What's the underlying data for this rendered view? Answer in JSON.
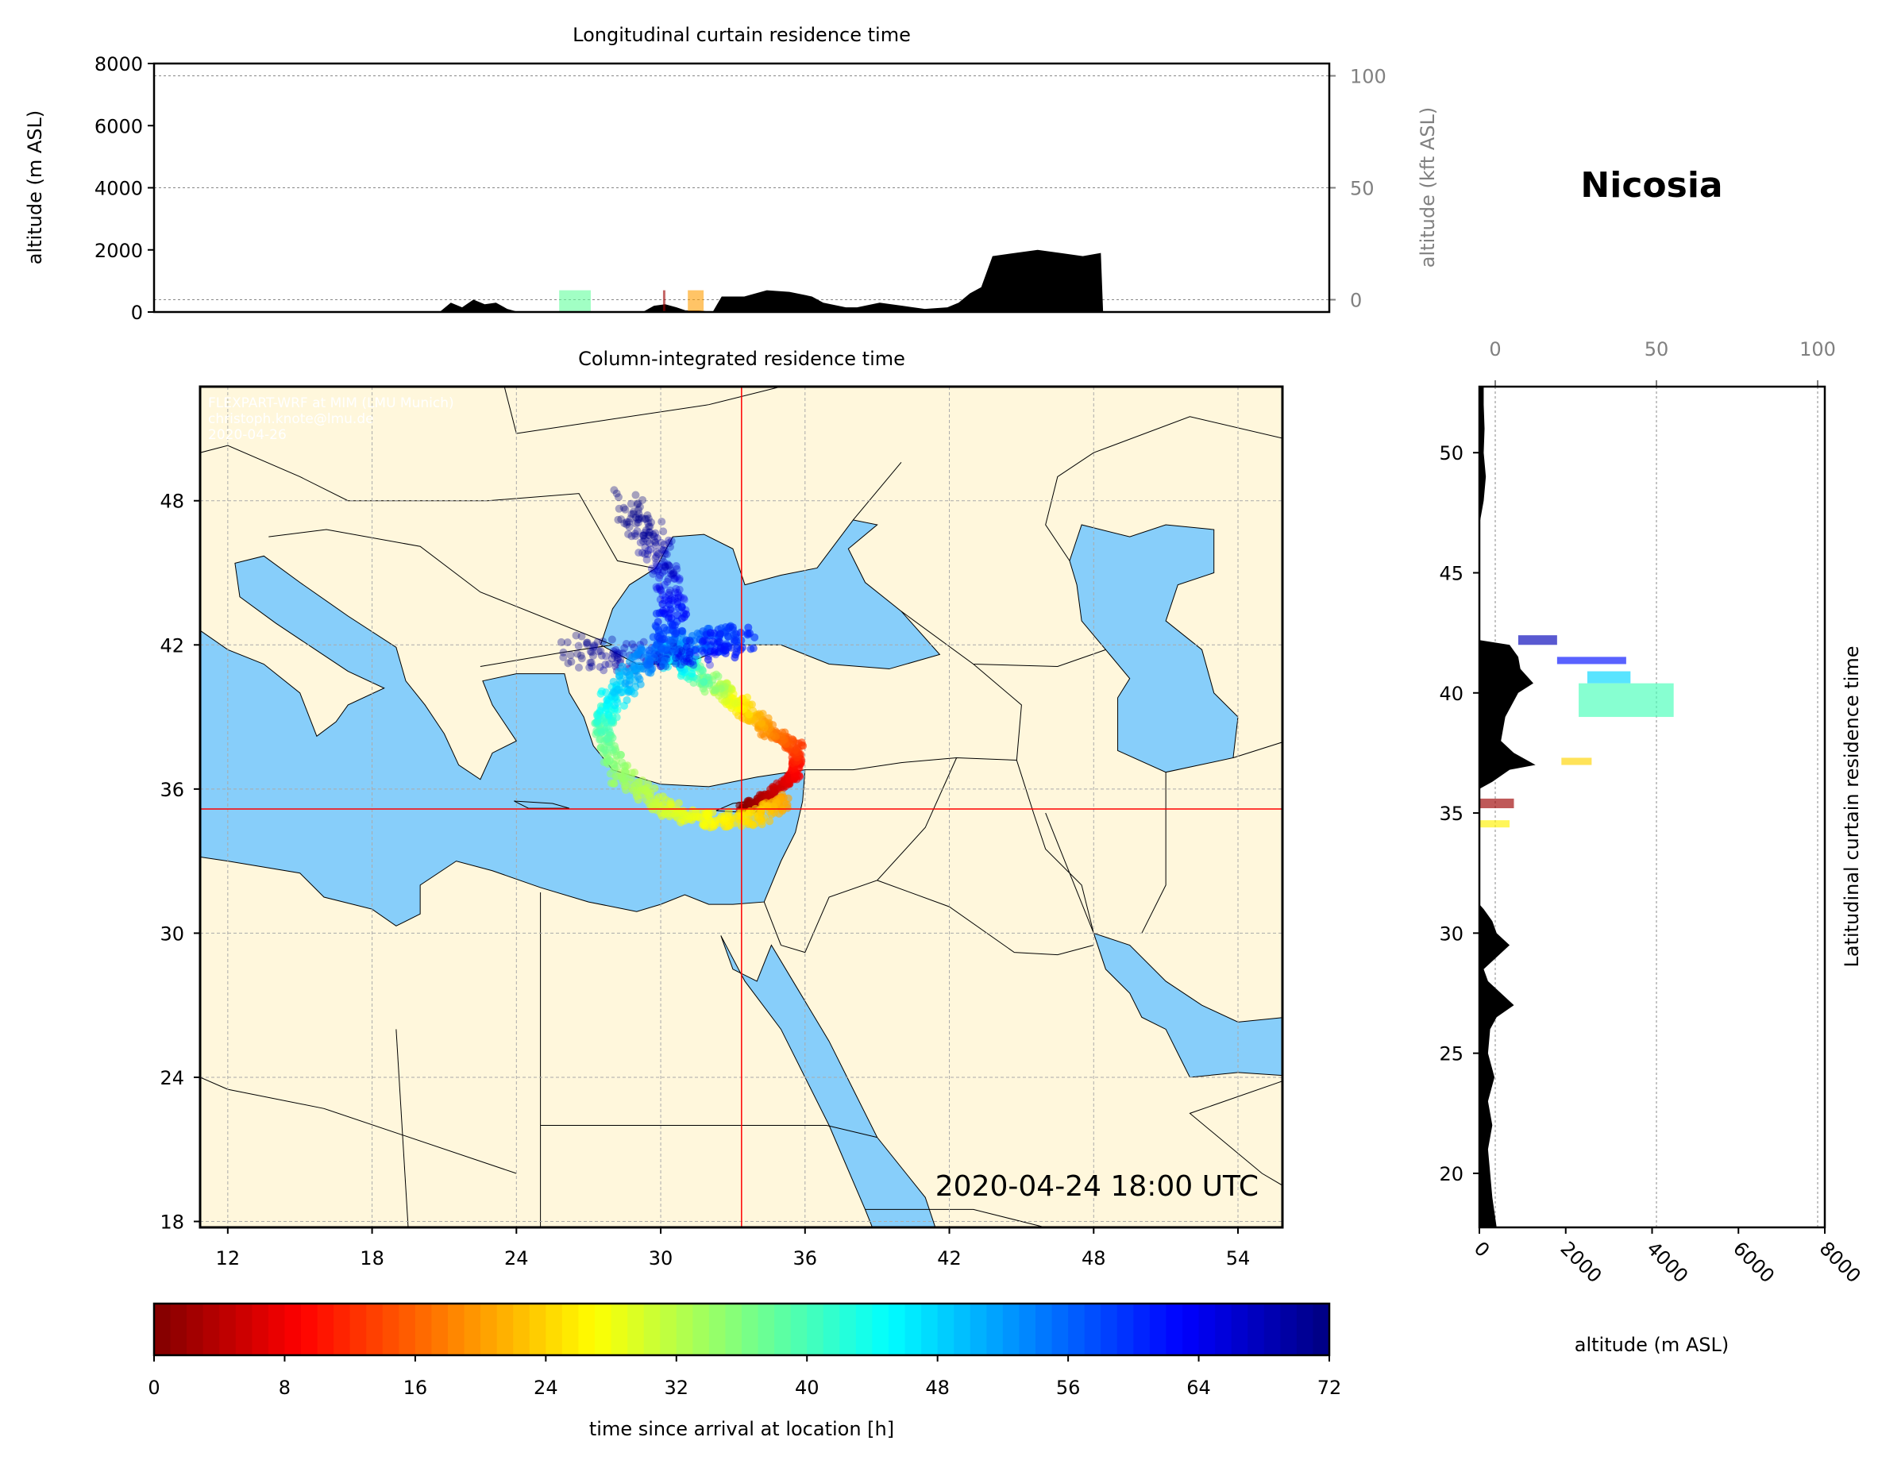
{
  "title": "Nicosia",
  "timestamp": "2020-04-24 18:00 UTC",
  "watermark": [
    "FLEXPART-WRF at MIM (LMU Munich)",
    "christoph.knote@lmu.de",
    "2020-04-26"
  ],
  "colors": {
    "sea": "#87cefa",
    "land": "#fff7dc",
    "crosshair": "#ff0000",
    "terrain": "#000000"
  },
  "chart_data": [
    {
      "type": "area",
      "title": "Longitudinal curtain residence time",
      "ylabel": "altitude (m ASL)",
      "ylabel_right": "altitude (kft ASL)",
      "ylim": [
        0,
        8000
      ],
      "yticks": [
        "0",
        "2000",
        "4000",
        "6000",
        "8000"
      ],
      "yticks_right": [
        "0",
        "50",
        "100"
      ],
      "x_unit": "longitude",
      "xlim": [
        10.85,
        55.85
      ],
      "terrain": {
        "x": [
          23.5,
          24.0,
          24.5,
          25.0,
          25.5,
          26.0,
          26.5,
          27.0,
          32.5,
          33.0,
          33.5,
          34.0,
          34.4,
          35.0,
          35.6,
          36.0,
          37.0,
          38.0,
          39.0,
          40.0,
          40.5,
          41.5,
          42.0,
          43.0,
          44.0,
          45.0,
          46.0,
          46.5,
          47.0,
          47.5,
          48.0,
          49.0,
          50.0,
          51.0,
          52.0,
          52.8,
          52.9
        ],
        "y": [
          0,
          300,
          150,
          400,
          250,
          300,
          100,
          0,
          0,
          200,
          250,
          150,
          50,
          50,
          0,
          500,
          500,
          700,
          650,
          500,
          300,
          150,
          150,
          300,
          200,
          100,
          150,
          300,
          600,
          800,
          1800,
          1900,
          2000,
          1900,
          1800,
          1900,
          0
        ]
      },
      "patches": [
        {
          "x": [
            28.8,
            30.2
          ],
          "y": [
            0,
            700
          ],
          "hours": 38
        },
        {
          "x": [
            33.4,
            33.5
          ],
          "y": [
            0,
            700
          ],
          "hours": 2
        },
        {
          "x": [
            34.5,
            35.2
          ],
          "y": [
            0,
            700
          ],
          "hours": 20
        }
      ]
    },
    {
      "type": "map",
      "title": "Column-integrated residence time",
      "xlim": [
        10.85,
        55.85
      ],
      "ylim": [
        17.75,
        52.75
      ],
      "xticks": [
        "12",
        "18",
        "24",
        "30",
        "36",
        "42",
        "48",
        "54"
      ],
      "yticks": [
        "18",
        "24",
        "30",
        "36",
        "42",
        "48"
      ],
      "crosshair": {
        "lon": 33.36,
        "lat": 35.17
      },
      "trajectories": [
        {
          "lon": [
            33.4,
            34.5,
            35.6,
            35.7,
            34.6,
            33.5,
            32.5,
            31.2,
            30.2,
            31.5,
            33.5,
            31.0,
            28.5,
            26.0
          ],
          "lat": [
            35.2,
            35.7,
            36.6,
            37.7,
            38.4,
            39.3,
            40.2,
            41.0,
            41.7,
            42.2,
            42.3,
            41.6,
            41.5,
            41.8
          ],
          "hours": [
            0,
            4,
            8,
            13,
            18,
            24,
            32,
            42,
            50,
            56,
            60,
            64,
            68,
            72
          ]
        },
        {
          "lon": [
            35.2,
            34.0,
            32.0,
            30.0,
            28.3,
            27.6,
            27.8,
            28.7,
            30.0,
            30.6,
            30.2,
            29.5,
            28.6
          ],
          "lat": [
            35.6,
            34.8,
            34.7,
            35.3,
            36.6,
            38.2,
            39.5,
            40.6,
            41.8,
            43.5,
            45.0,
            46.5,
            48.0
          ],
          "hours": [
            20,
            24,
            27,
            30,
            34,
            38,
            44,
            50,
            56,
            62,
            66,
            70,
            72
          ]
        }
      ]
    },
    {
      "type": "area",
      "title": "Latitudinal curtain residence time",
      "xlabel": "altitude (m ASL)",
      "xlim": [
        0,
        8000
      ],
      "xticks": [
        "0",
        "2000",
        "4000",
        "6000",
        "8000"
      ],
      "xticks_top": [
        "0",
        "50",
        "100"
      ],
      "ylim": [
        17.75,
        52.75
      ],
      "yticks": [
        "20",
        "25",
        "30",
        "35",
        "40",
        "45",
        "50"
      ],
      "terrain": {
        "lat": [
          17.75,
          19,
          20,
          21,
          22,
          23,
          24,
          25,
          26,
          26.5,
          27,
          27.5,
          28,
          28.5,
          29,
          29.5,
          30,
          30.5,
          31,
          31.2,
          36,
          36.3,
          36.8,
          37,
          37.5,
          38,
          39,
          40,
          40.4,
          41,
          41.5,
          42,
          42.2,
          47,
          48,
          49,
          50,
          51,
          52,
          52.75
        ],
        "alt": [
          400,
          300,
          250,
          200,
          300,
          200,
          350,
          200,
          250,
          400,
          800,
          500,
          200,
          100,
          400,
          700,
          400,
          300,
          100,
          0,
          0,
          300,
          700,
          1300,
          800,
          500,
          600,
          900,
          1250,
          950,
          900,
          700,
          0,
          0,
          100,
          150,
          100,
          120,
          100,
          100
        ]
      },
      "patches": [
        {
          "lat": [
            42.0,
            42.4
          ],
          "alt": [
            900,
            1800
          ],
          "hours": 68
        },
        {
          "lat": [
            41.2,
            41.5
          ],
          "alt": [
            1800,
            3400
          ],
          "hours": 62
        },
        {
          "lat": [
            40.4,
            40.9
          ],
          "alt": [
            2500,
            3500
          ],
          "hours": 48
        },
        {
          "lat": [
            39.0,
            40.4
          ],
          "alt": [
            2300,
            4500
          ],
          "hours": 40
        },
        {
          "lat": [
            37.0,
            37.3
          ],
          "alt": [
            1900,
            2600
          ],
          "hours": 24
        },
        {
          "lat": [
            35.2,
            35.6
          ],
          "alt": [
            0,
            800
          ],
          "hours": 2
        },
        {
          "lat": [
            34.4,
            34.7
          ],
          "alt": [
            0,
            700
          ],
          "hours": 26
        }
      ]
    },
    {
      "type": "colorbar",
      "label": "time since arrival at location [h]",
      "range": [
        0,
        72
      ],
      "ticks": [
        "0",
        "8",
        "16",
        "24",
        "32",
        "40",
        "48",
        "56",
        "64",
        "72"
      ],
      "colormap": "jet_r"
    }
  ]
}
